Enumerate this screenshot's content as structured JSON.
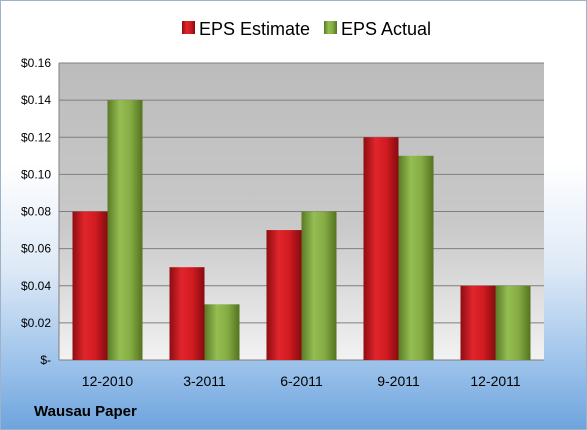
{
  "company_name": "Wausau Paper",
  "colors": {
    "estimate": "#c0141b",
    "actual": "#7ea33e"
  },
  "chart_data": {
    "type": "bar",
    "categories": [
      "12-2010",
      "3-2011",
      "6-2011",
      "9-2011",
      "12-2011"
    ],
    "series": [
      {
        "name": "EPS Estimate",
        "values": [
          0.08,
          0.05,
          0.07,
          0.12,
          0.04
        ]
      },
      {
        "name": "EPS Actual",
        "values": [
          0.14,
          0.03,
          0.08,
          0.11,
          0.04
        ]
      }
    ],
    "ylim": [
      0,
      0.16
    ],
    "yticks": [
      0,
      0.02,
      0.04,
      0.06,
      0.08,
      0.1,
      0.12,
      0.14,
      0.16
    ],
    "ytick_labels": [
      "$-",
      "$0.02",
      "$0.04",
      "$0.06",
      "$0.08",
      "$0.10",
      "$0.12",
      "$0.14",
      "$0.16"
    ],
    "legend_position": "top",
    "grid": true
  }
}
